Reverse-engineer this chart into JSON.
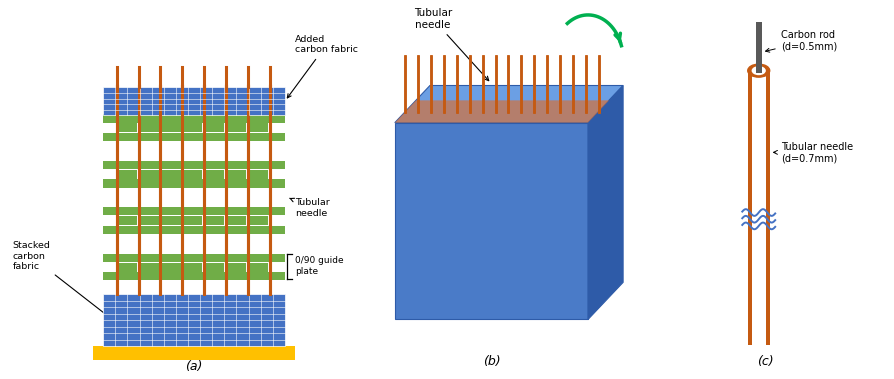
{
  "bg_color": "#ffffff",
  "label_a": "(a)",
  "label_b": "(b)",
  "label_c": "(c)",
  "color_blue_fabric": "#4472C4",
  "color_blue_fabric_light": "#5B8BD6",
  "color_blue_fabric_dark": "#2E5BA8",
  "color_green_plate": "#70AD47",
  "color_orange_needle": "#C55A11",
  "color_yellow_base": "#FFC000",
  "color_gray_rod": "#595959",
  "color_arrow_green": "#00B050",
  "color_blue_wavy": "#4472C4",
  "text_added_carbon": "Added\ncarbon fabric",
  "text_guide_plate": "0/90 guide\nplate",
  "text_tubular_needle_a": "Tubular\nneedle",
  "text_stacked": "Stacked\ncarbon\nfabric",
  "text_tubular_needle_b": "Tubular\nneedle",
  "text_carbon_rod": "Carbon rod\n(d=0.5mm)",
  "text_tubular_needle_c": "Tubular needle\n(d=0.7mm)"
}
